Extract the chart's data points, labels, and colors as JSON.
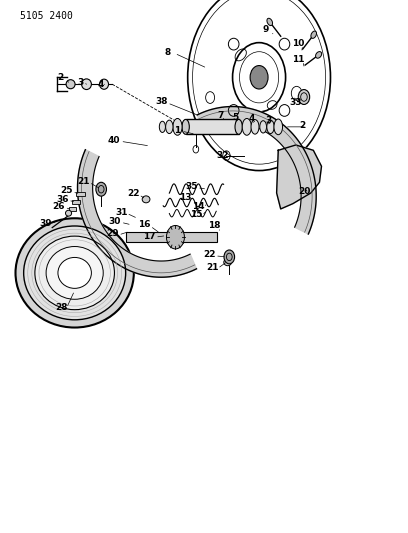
{
  "title": "5105 2400",
  "bg_color": "#ffffff",
  "line_color": "#000000",
  "mid_gray": "#888888",
  "light_gray": "#aaaaaa"
}
